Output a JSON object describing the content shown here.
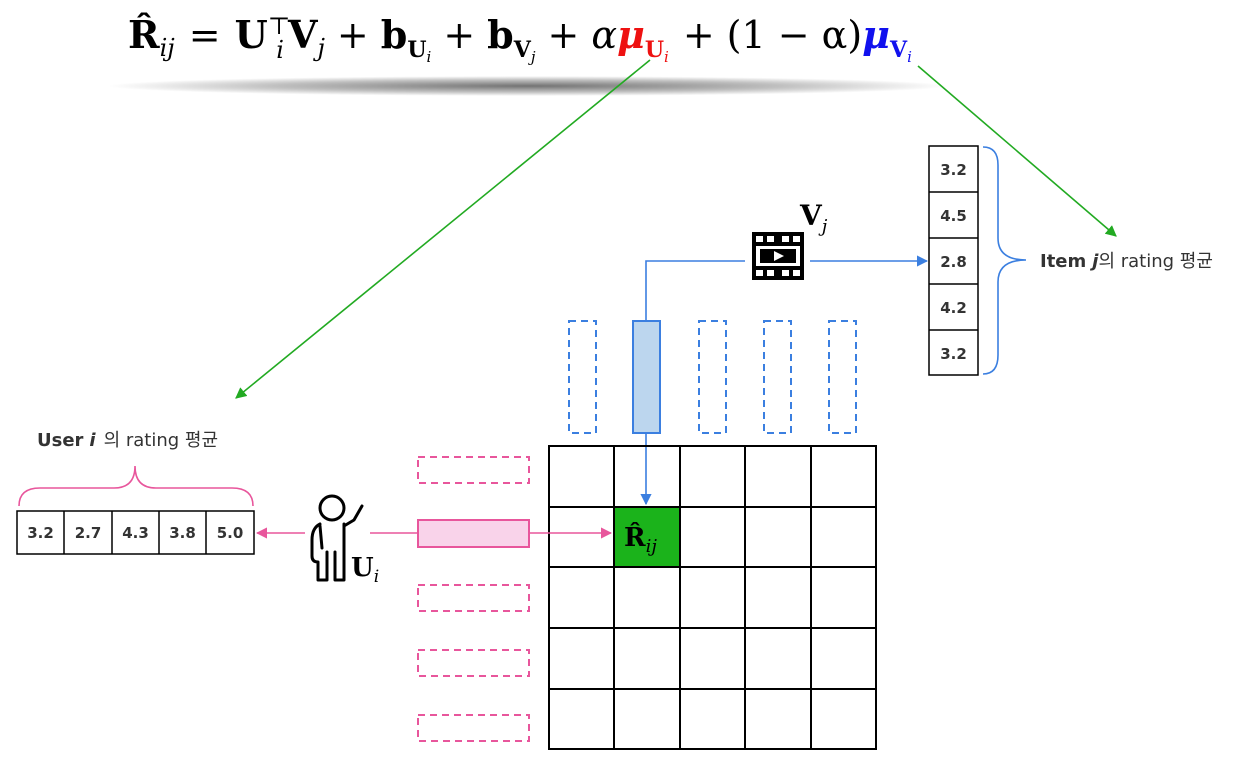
{
  "formula": {
    "lhs": "R̂",
    "lhs_sub": "ij",
    "eq": "=",
    "U": "U",
    "U_sub": "i",
    "U_sup": "⊤",
    "V": "V",
    "V_sub": "j",
    "plus1": "+",
    "b1": "b",
    "b1_sub": "U",
    "b1_subsub": "i",
    "plus2": "+",
    "b2": "b",
    "b2_sub": "V",
    "b2_subsub": "j",
    "plus3": "+",
    "alpha1": "α",
    "mu_u": "μ",
    "mu_u_sub": "U",
    "mu_u_subsub": "i",
    "plus4": "+",
    "paren": "(1 − α)",
    "mu_v": "μ",
    "mu_v_sub": "V",
    "mu_v_subsub": "i"
  },
  "colors": {
    "user_pink": "#e8569c",
    "user_fill": "#f9d3ea",
    "item_blue": "#3b7fe0",
    "item_fill": "#bcd6ee",
    "target_green": "#1bb31b",
    "arrow_green": "#22aa22",
    "mu_u_red": "#ee1111",
    "mu_v_blue": "#1111ee"
  },
  "user_ratings": {
    "title_prefix": "User",
    "title_var": "i",
    "title_suffix": "의 rating 평균",
    "values": [
      "3.2",
      "2.7",
      "4.3",
      "3.8",
      "5.0"
    ]
  },
  "item_ratings": {
    "label_prefix": "Item",
    "label_var": "j",
    "label_suffix": "의 rating 평균",
    "values": [
      "3.2",
      "4.5",
      "2.8",
      "4.2",
      "3.2"
    ]
  },
  "user_vector_label": {
    "base": "U",
    "sub": "i"
  },
  "item_vector_label": {
    "base": "V",
    "sub": "j"
  },
  "target_cell_label": {
    "base": "R̂",
    "sub": "ij"
  },
  "icons": {
    "user": "person-pointing-icon",
    "item": "film-strip-play-icon"
  }
}
